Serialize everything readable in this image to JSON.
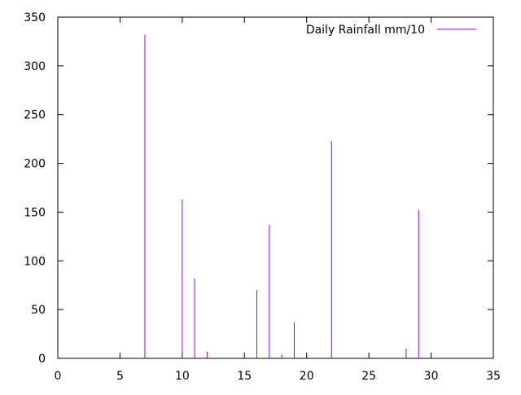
{
  "chart_data": {
    "type": "bar",
    "style": "impulses",
    "xlim": [
      0,
      35
    ],
    "ylim": [
      0,
      350
    ],
    "xticks": [
      0,
      5,
      10,
      15,
      20,
      25,
      30,
      35
    ],
    "yticks": [
      0,
      50,
      100,
      150,
      200,
      250,
      300,
      350
    ],
    "grid": false,
    "legend_position": "top-right",
    "series": [
      {
        "name": "Daily Rainfall mm/10",
        "color": "#9400d3",
        "x": [
          7,
          10,
          11,
          12,
          15,
          16,
          17,
          18,
          19,
          22,
          28,
          29
        ],
        "values": [
          332,
          163,
          82,
          7,
          3,
          70,
          137,
          4,
          37,
          223,
          10,
          152
        ]
      }
    ]
  }
}
